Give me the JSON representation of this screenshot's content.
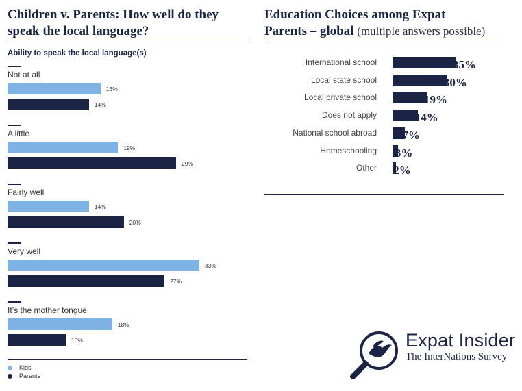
{
  "left_panel": {
    "title_line1": "Children v. Parents: How well do they",
    "title_line2": "speak the local language?",
    "subtitle": "Ability to speak the local language(s)"
  },
  "right_panel": {
    "title_line1": "Education Choices among Expat",
    "title_line2_bold": "Parents – global",
    "title_line2_sub": "(multiple answers possible)"
  },
  "logo": {
    "brand": "Expat Insider",
    "tagline": "The InterNations Survey",
    "icon": "magnifier-bird-icon"
  },
  "colors": {
    "kids": "#7fb2e5",
    "parents": "#1b2444"
  },
  "chart_data": [
    {
      "type": "bar",
      "orientation": "horizontal",
      "title": "Children v. Parents: How well do they speak the local language?",
      "subtitle": "Ability to speak the local language(s)",
      "categories": [
        "Not at all",
        "A little",
        "Fairly well",
        "Very well",
        "It’s the mother tongue"
      ],
      "series": [
        {
          "name": "Kids",
          "values": [
            16,
            19,
            14,
            33,
            18
          ],
          "labels": [
            "16%",
            "19%",
            "14%",
            "33%",
            "18%"
          ]
        },
        {
          "name": "Parents",
          "values": [
            14,
            29,
            20,
            27,
            10
          ],
          "labels": [
            "14%",
            "29%",
            "20%",
            "27%",
            "10%"
          ]
        }
      ],
      "legend": "bottom-left",
      "unit": "%"
    },
    {
      "type": "bar",
      "orientation": "horizontal",
      "title": "Education Choices among Expat Parents – global",
      "subtitle": "(multiple answers possible)",
      "categories": [
        "International school",
        "Local state school",
        "Local private school",
        "Does not apply",
        "National school abroad",
        "Homeschooling",
        "Other"
      ],
      "values": [
        35,
        30,
        19,
        14,
        7,
        3,
        2
      ],
      "labels": [
        "35%",
        "30%",
        "19%",
        "14%",
        "7%",
        "3%",
        "2%"
      ],
      "unit": "%"
    }
  ]
}
